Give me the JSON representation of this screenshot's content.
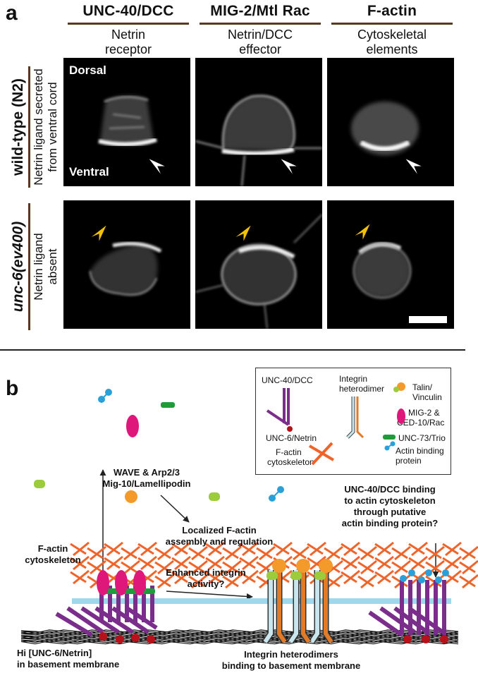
{
  "panel_a": {
    "letter": "a",
    "columns": [
      {
        "title": "UNC-40/DCC",
        "sub1": "Netrin",
        "sub2": "receptor"
      },
      {
        "title": "MIG-2/Mtl Rac",
        "sub1": "Netrin/DCC",
        "sub2": "effector"
      },
      {
        "title": "F-actin",
        "sub1": "Cytoskeletal",
        "sub2": "elements"
      }
    ],
    "rows": [
      {
        "main": "wild-type (N2)",
        "sub1": "Netrin ligand secreted",
        "sub2": "from ventral cord"
      },
      {
        "main": "unc-6(ev400)",
        "sub1": "Netrin ligand",
        "sub2": "absent"
      }
    ],
    "labels": {
      "dorsal": "Dorsal",
      "ventral": "Ventral"
    },
    "colors": {
      "rule": "#5a3a1e",
      "wt_arrow": "#ffffff",
      "mut_arrow": "#f2c200"
    }
  },
  "panel_b": {
    "letter": "b",
    "legend": {
      "unc40": "UNC-40/DCC",
      "integrin_1": "Integrin",
      "integrin_2": "heterodimer",
      "talin_1": "Talin/",
      "talin_2": "Vinculin",
      "mig2_1": "MIG-2 &",
      "mig2_2": "CED-10/Rac",
      "unc6": "UNC-6/Netrin",
      "unc73": "UNC-73/Trio",
      "factin_1": "F-actin",
      "factin_2": "cytoskeleton",
      "abp_1": "Actin binding",
      "abp_2": "protein"
    },
    "text": {
      "wave_1": "WAVE & Arp2/3",
      "wave_2": "Mig-10/Lamellipodin",
      "local_1": "Localized F-actin",
      "local_2": "assembly and regulation",
      "unc40bind_1": "UNC-40/DCC binding",
      "unc40bind_2": "to actin cytoskeleton",
      "unc40bind_3": "through putative",
      "unc40bind_4": "actin binding protein?",
      "factin_1": "F-actin",
      "factin_2": "cytoskeleton",
      "enh_1": "Enhanced integrin",
      "enh_2": "activity?",
      "hi_1": "Hi [UNC-6/Netrin]",
      "hi_2": "in basement membrane",
      "intbind_1": "Integrin heterodimers",
      "intbind_2": "binding to basement membrane"
    },
    "colors": {
      "purple": "#7b2d8b",
      "netrin": "#b5121b",
      "rac": "#e0177a",
      "trio": "#1e9b3a",
      "talin_green": "#9ccc3c",
      "talin_orange": "#f39a2b",
      "abp": "#2a9fd8",
      "actin": "#f0642a",
      "membrane": "#9fd8ea",
      "integrin_light": "#c9e6ee",
      "integrin_orange": "#e07b2a"
    }
  }
}
